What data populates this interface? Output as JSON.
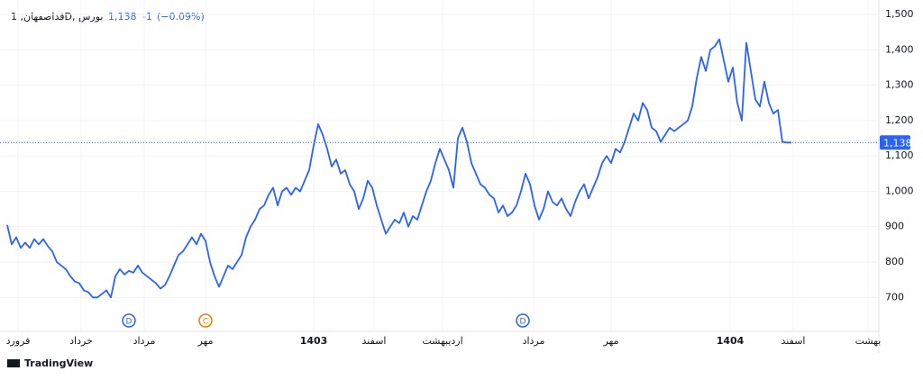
{
  "chart_data": {
    "type": "line",
    "title": "قداصفهان, 1D, بورس",
    "last_value": {
      "value": 1138,
      "label": "1,138"
    },
    "change": -1,
    "change_percent": {
      "value": -0.09,
      "label": "(−0.09%)"
    },
    "color": "#2962ff",
    "grid": true,
    "values": [
      905,
      850,
      870,
      840,
      855,
      840,
      865,
      850,
      865,
      845,
      830,
      800,
      790,
      780,
      760,
      745,
      740,
      720,
      715,
      700,
      700,
      710,
      720,
      700,
      760,
      780,
      765,
      775,
      770,
      790,
      770,
      760,
      750,
      740,
      725,
      735,
      760,
      790,
      820,
      830,
      850,
      870,
      850,
      880,
      860,
      800,
      760,
      730,
      760,
      790,
      780,
      800,
      820,
      870,
      900,
      920,
      950,
      960,
      990,
      1010,
      960,
      1000,
      1010,
      990,
      1010,
      1000,
      1030,
      1060,
      1130,
      1190,
      1160,
      1120,
      1070,
      1090,
      1050,
      1060,
      1020,
      1000,
      950,
      980,
      1030,
      1010,
      960,
      920,
      880,
      900,
      920,
      910,
      940,
      900,
      930,
      920,
      960,
      1000,
      1030,
      1080,
      1120,
      1090,
      1060,
      1010,
      1150,
      1180,
      1140,
      1080,
      1050,
      1020,
      1010,
      990,
      980,
      940,
      960,
      930,
      940,
      960,
      1000,
      1050,
      1020,
      960,
      920,
      950,
      1000,
      970,
      960,
      980,
      950,
      930,
      970,
      1000,
      1020,
      980,
      1010,
      1040,
      1080,
      1100,
      1080,
      1120,
      1110,
      1140,
      1180,
      1220,
      1200,
      1250,
      1230,
      1180,
      1170,
      1140,
      1160,
      1180,
      1170,
      1180,
      1190,
      1200,
      1240,
      1320,
      1380,
      1340,
      1400,
      1410,
      1430,
      1370,
      1310,
      1350,
      1250,
      1200,
      1420,
      1340,
      1260,
      1240,
      1310,
      1250,
      1220,
      1230,
      1140,
      1138,
      1138
    ],
    "xlim": [
      0,
      193.4
    ],
    "xticks": [
      {
        "value": 2.4,
        "label": "فرورد"
      },
      {
        "value": 16.4,
        "label": "خرداد"
      },
      {
        "value": 30.4,
        "label": "مرداد"
      },
      {
        "value": 44,
        "label": "مهر"
      },
      {
        "value": 68,
        "label": "1403"
      },
      {
        "value": 81.4,
        "label": "اسفند"
      },
      {
        "value": 96.6,
        "label": "اردیبهشت"
      },
      {
        "value": 116.8,
        "label": "مرداد"
      },
      {
        "value": 134,
        "label": "مهر"
      },
      {
        "value": 160.4,
        "label": "1404"
      },
      {
        "value": 174.4,
        "label": "اسفند"
      },
      {
        "value": 191,
        "label": "بهشت"
      }
    ],
    "ylim": [
      604,
      1541
    ],
    "yticks": [
      700,
      800,
      900,
      {
        "value": 1000,
        "label": "1,000"
      },
      {
        "value": 1100,
        "label": "1,100"
      },
      {
        "value": 1200,
        "label": "1,200"
      },
      {
        "value": 1300,
        "label": "1,300"
      },
      {
        "value": 1400,
        "label": "1,400"
      },
      {
        "value": 1500,
        "label": "1,500"
      }
    ],
    "events": [
      {
        "label": "D",
        "x": 27,
        "color": "#2962ff"
      },
      {
        "label": "C",
        "x": 44,
        "color": "#f57c00"
      },
      {
        "label": "D",
        "x": 114.4,
        "color": "#2962ff"
      }
    ],
    "footer": "TradingView"
  }
}
